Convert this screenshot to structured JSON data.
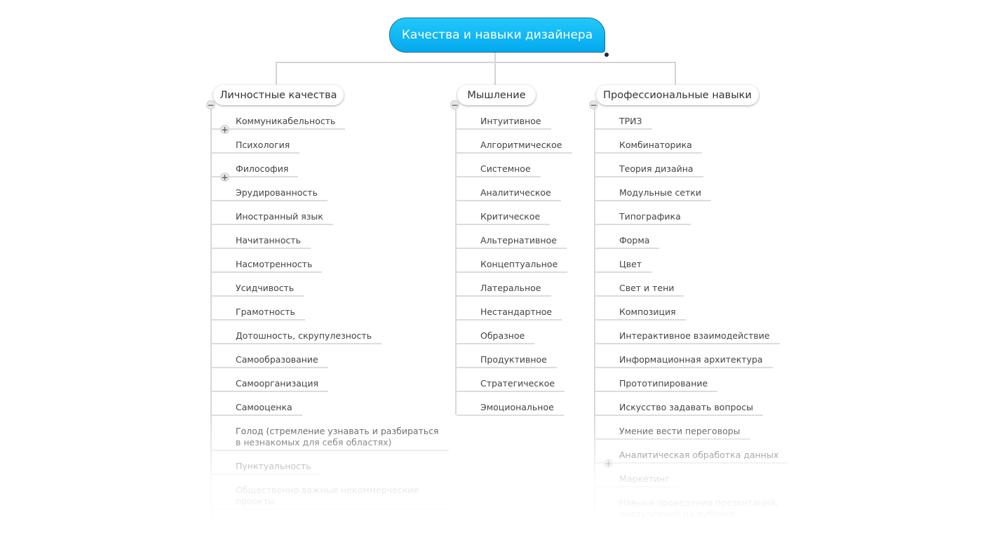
{
  "root": {
    "label": "Качества и навыки дизайнера",
    "color": "#0cb4f3"
  },
  "branches": [
    {
      "label": "Личностные качества",
      "items": [
        {
          "label": "Коммуникабельность",
          "expand": true
        },
        {
          "label": "Психология"
        },
        {
          "label": "Философия",
          "expand": true
        },
        {
          "label": "Эрудированность"
        },
        {
          "label": "Иностранный язык"
        },
        {
          "label": "Начитанность"
        },
        {
          "label": "Насмотренность"
        },
        {
          "label": "Усидчивость"
        },
        {
          "label": "Грамотность"
        },
        {
          "label": "Дотошность, скрупулезность"
        },
        {
          "label": "Самообразование"
        },
        {
          "label": "Самоорганизация"
        },
        {
          "label": "Самооценка"
        },
        {
          "label": "Голод (стремление узнавать и разбираться в незнакомых для себя областях)"
        },
        {
          "label": "Пунктуальность"
        },
        {
          "label": "Общественно важные некоммерческие проекты"
        }
      ]
    },
    {
      "label": "Мышление",
      "items": [
        {
          "label": "Интуитивное"
        },
        {
          "label": "Алгоритмическое"
        },
        {
          "label": "Системное"
        },
        {
          "label": "Аналитическое"
        },
        {
          "label": "Критическое"
        },
        {
          "label": "Альтернативное"
        },
        {
          "label": "Концептуальное"
        },
        {
          "label": "Латеральное"
        },
        {
          "label": "Нестандартное"
        },
        {
          "label": "Образное"
        },
        {
          "label": "Продуктивное"
        },
        {
          "label": "Стратегическое"
        },
        {
          "label": "Эмоциональное"
        }
      ]
    },
    {
      "label": "Профессиональные навыки",
      "items": [
        {
          "label": "ТРИЗ"
        },
        {
          "label": "Комбинаторика"
        },
        {
          "label": "Теория дизайна"
        },
        {
          "label": "Модульные сетки"
        },
        {
          "label": "Типографика"
        },
        {
          "label": "Форма"
        },
        {
          "label": "Цвет"
        },
        {
          "label": "Свет и тени"
        },
        {
          "label": "Композиция"
        },
        {
          "label": "Интерактивное взаимодействие"
        },
        {
          "label": "Информационная архитектура"
        },
        {
          "label": "Прототипирование"
        },
        {
          "label": "Искусство задавать вопросы"
        },
        {
          "label": "Умение вести переговоры"
        },
        {
          "label": "Аналитическая обработка данных",
          "expand": true
        },
        {
          "label": "Маркетинг"
        },
        {
          "label": "Навыки проведения презентаций, выступлений на публике"
        }
      ]
    }
  ],
  "icons": {
    "collapse": "minus-circle-icon",
    "expand": "plus-circle-icon"
  }
}
